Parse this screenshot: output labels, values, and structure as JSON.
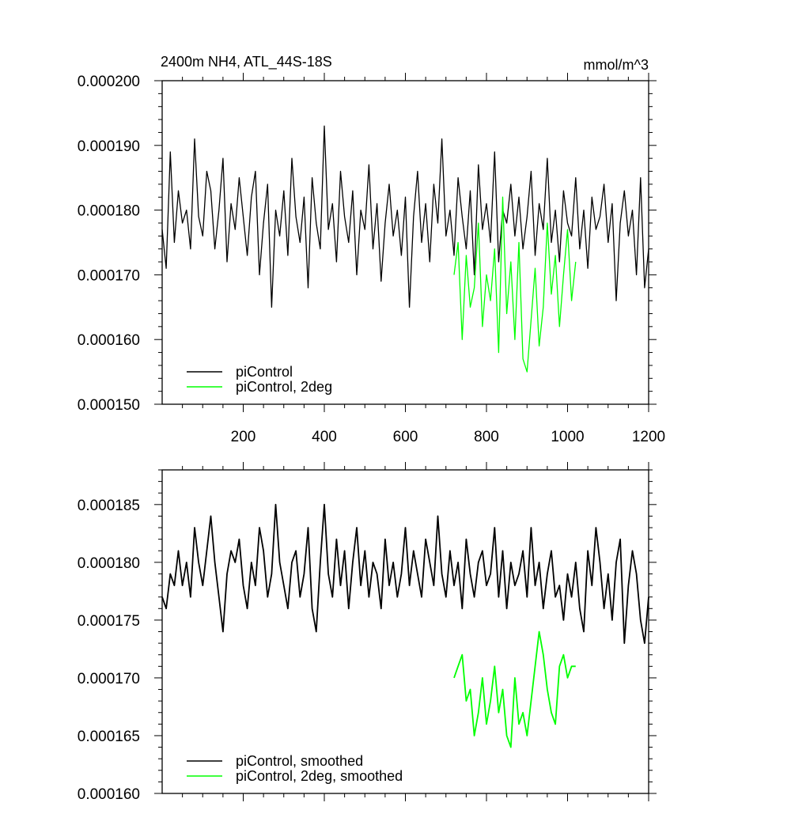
{
  "chart_data": [
    {
      "type": "line",
      "title": "2400m NH4, ATL_44S-18S",
      "units": "mmol/m^3",
      "xlim": [
        0,
        1200
      ],
      "ylim": [
        0.00015,
        0.0002
      ],
      "xticks": [
        200,
        400,
        600,
        800,
        1000,
        1200
      ],
      "xtick_labels": [
        "200",
        "400",
        "600",
        "800",
        "1000",
        "1200"
      ],
      "yticks": [
        0.00015,
        0.00016,
        0.00017,
        0.00018,
        0.00019,
        0.0002
      ],
      "ytick_labels": [
        "0.000150",
        "0.000160",
        "0.000170",
        "0.000180",
        "0.000190",
        "0.000200"
      ],
      "legend_position": "bottom-left",
      "grid": false,
      "series": [
        {
          "name": "piControl",
          "color": "#000000",
          "x_start": 0,
          "x_step": 10,
          "values": [
            177,
            171,
            189,
            175,
            183,
            178,
            180,
            174,
            191,
            179,
            176,
            186,
            183,
            174,
            180,
            188,
            172,
            181,
            177,
            185,
            179,
            173,
            182,
            186,
            170,
            178,
            184,
            165,
            180,
            176,
            183,
            173,
            188,
            179,
            175,
            182,
            168,
            185,
            178,
            174,
            193,
            177,
            181,
            172,
            186,
            179,
            175,
            183,
            170,
            180,
            177,
            187,
            174,
            181,
            169,
            178,
            184,
            176,
            180,
            173,
            182,
            165,
            179,
            186,
            175,
            181,
            172,
            184,
            178,
            191,
            176,
            180,
            173,
            185,
            179,
            174,
            183,
            170,
            187,
            177,
            181,
            175,
            189,
            172,
            180,
            178,
            184,
            176,
            182,
            174,
            179,
            186,
            173,
            181,
            177,
            188,
            175,
            180,
            172,
            183,
            178,
            176,
            185,
            174,
            180,
            171,
            182,
            177,
            179,
            184,
            175,
            181,
            166,
            178,
            183,
            176,
            180,
            170,
            185,
            168,
            174
          ],
          "value_scale": 1e-06
        },
        {
          "name": "piControl, 2deg",
          "color": "#00ff00",
          "x_start": 720,
          "x_step": 10,
          "values": [
            170,
            175,
            160,
            173,
            165,
            168,
            178,
            162,
            170,
            166,
            174,
            158,
            182,
            164,
            172,
            160,
            175,
            157,
            155,
            163,
            171,
            159,
            165,
            178,
            167,
            173,
            162,
            170,
            177,
            166,
            172
          ],
          "value_scale": 1e-06
        }
      ]
    },
    {
      "type": "line",
      "xlim": [
        0,
        1200
      ],
      "ylim": [
        0.00016,
        0.000188
      ],
      "xticks": [
        200,
        400,
        600,
        800,
        1000,
        1200
      ],
      "yticks": [
        0.00016,
        0.000165,
        0.00017,
        0.000175,
        0.00018,
        0.000185
      ],
      "ytick_labels": [
        "0.000160",
        "0.000165",
        "0.000170",
        "0.000175",
        "0.000180",
        "0.000185"
      ],
      "legend_position": "bottom-left",
      "grid": false,
      "series": [
        {
          "name": "piControl, smoothed",
          "color": "#000000",
          "x_start": 0,
          "x_step": 10,
          "values": [
            177,
            176,
            179,
            178,
            181,
            178,
            180,
            177,
            183,
            180,
            178,
            181,
            184,
            180,
            177,
            174,
            179,
            181,
            180,
            182,
            178,
            176,
            180,
            178,
            183,
            181,
            177,
            179,
            185,
            180,
            178,
            176,
            180,
            181,
            177,
            179,
            183,
            176,
            174,
            180,
            185,
            179,
            177,
            182,
            178,
            181,
            176,
            180,
            183,
            178,
            181,
            177,
            180,
            179,
            176,
            182,
            178,
            180,
            177,
            179,
            183,
            178,
            181,
            179,
            177,
            182,
            180,
            178,
            184,
            179,
            177,
            181,
            178,
            180,
            176,
            182,
            179,
            177,
            180,
            181,
            178,
            179,
            183,
            177,
            181,
            176,
            180,
            178,
            179,
            181,
            177,
            183,
            178,
            180,
            176,
            179,
            181,
            177,
            178,
            175,
            179,
            177,
            180,
            176,
            174,
            181,
            178,
            183,
            180,
            176,
            179,
            175,
            180,
            182,
            173,
            178,
            181,
            179,
            175,
            173,
            177
          ],
          "value_scale": 1e-06
        },
        {
          "name": "piControl, 2deg, smoothed",
          "color": "#00ff00",
          "x_start": 720,
          "x_step": 10,
          "values": [
            170,
            171,
            172,
            168,
            169,
            165,
            167,
            170,
            166,
            168,
            171,
            167,
            169,
            165,
            164,
            170,
            166,
            167,
            165,
            168,
            171,
            174,
            172,
            169,
            167,
            166,
            171,
            172,
            170,
            171,
            171
          ],
          "value_scale": 1e-06
        }
      ]
    }
  ]
}
